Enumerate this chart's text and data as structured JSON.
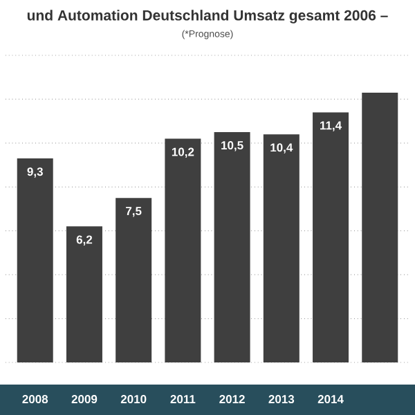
{
  "chart_data": {
    "type": "bar",
    "title": "und Automation Deutschland Umsatz gesamt 2006 –",
    "subtitle": "(*Prognose)",
    "categories": [
      "2008",
      "2009",
      "2010",
      "2011",
      "2012",
      "2013",
      "2014",
      null
    ],
    "values": [
      9.3,
      6.2,
      7.5,
      10.2,
      10.5,
      10.4,
      11.4,
      12.3
    ],
    "value_labels": [
      "9,3",
      "6,2",
      "7,5",
      "10,2",
      "10,5",
      "10,4",
      "11,4",
      null
    ],
    "color": "#3f3f3f",
    "ylim": [
      0,
      14
    ],
    "yticks": [
      {
        "value": 0,
        "label": null
      },
      {
        "value": 2,
        "label": null
      },
      {
        "value": 4,
        "label": null
      },
      {
        "value": 6,
        "label": null
      },
      {
        "value": 8,
        "label": null
      },
      {
        "value": 10,
        "label": null
      },
      {
        "value": 12,
        "label": null
      },
      {
        "value": 14,
        "label": null
      }
    ],
    "grid": "y",
    "tick_labels": "x"
  }
}
